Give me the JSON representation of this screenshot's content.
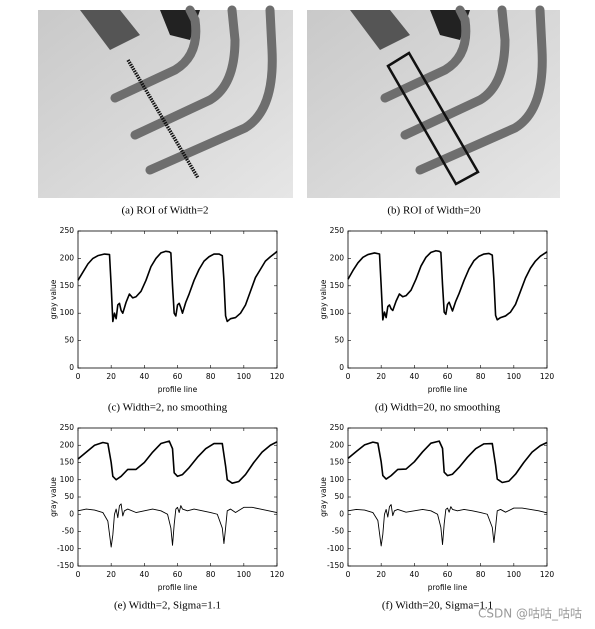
{
  "figures": [
    {
      "caption": "(a) ROI of Width=2"
    },
    {
      "caption": "(b) ROI of Width=20"
    }
  ],
  "chart_data": [
    {
      "type": "line",
      "caption": "(c) Width=2, no smoothing",
      "xlabel": "profile line",
      "ylabel": "gray value",
      "xlim": [
        0,
        120
      ],
      "xticks": [
        0,
        20,
        40,
        60,
        80,
        100,
        120
      ],
      "ylim": [
        0,
        250
      ],
      "yticks": [
        0,
        50,
        100,
        150,
        200,
        250
      ],
      "series": [
        {
          "color": "#000000",
          "x": [
            0,
            3,
            6,
            9,
            12,
            16,
            19,
            20,
            21,
            22,
            23,
            24,
            25,
            26,
            27,
            29,
            31,
            33,
            35,
            38,
            41,
            44,
            47,
            50,
            53,
            55,
            56,
            57,
            58,
            59,
            60,
            61,
            62,
            63,
            65,
            67,
            70,
            73,
            76,
            79,
            82,
            85,
            87,
            88,
            89,
            90,
            92,
            95,
            98,
            101,
            104,
            107,
            110,
            113,
            116,
            119,
            120
          ],
          "values": [
            160,
            175,
            190,
            200,
            205,
            208,
            207,
            150,
            85,
            100,
            90,
            115,
            118,
            105,
            100,
            120,
            135,
            128,
            130,
            140,
            160,
            185,
            200,
            210,
            213,
            212,
            210,
            150,
            100,
            95,
            115,
            118,
            110,
            100,
            120,
            135,
            160,
            180,
            195,
            203,
            208,
            208,
            205,
            160,
            95,
            85,
            90,
            92,
            100,
            115,
            140,
            165,
            180,
            195,
            203,
            210,
            213
          ]
        }
      ]
    },
    {
      "type": "line",
      "caption": "(d) Width=20, no smoothing",
      "xlabel": "profile line",
      "ylabel": "gray value",
      "xlim": [
        0,
        120
      ],
      "xticks": [
        0,
        20,
        40,
        60,
        80,
        100,
        120
      ],
      "ylim": [
        0,
        250
      ],
      "yticks": [
        0,
        50,
        100,
        150,
        200,
        250
      ],
      "series": [
        {
          "color": "#000000",
          "x": [
            0,
            3,
            6,
            9,
            12,
            16,
            19,
            20,
            21,
            22,
            23,
            24,
            25,
            26,
            27,
            29,
            31,
            33,
            35,
            38,
            41,
            44,
            47,
            50,
            53,
            55,
            56,
            57,
            58,
            59,
            60,
            61,
            62,
            63,
            65,
            67,
            70,
            73,
            76,
            79,
            82,
            85,
            87,
            88,
            89,
            90,
            92,
            95,
            98,
            101,
            104,
            107,
            110,
            113,
            116,
            119,
            120
          ],
          "values": [
            162,
            178,
            192,
            202,
            207,
            210,
            208,
            150,
            88,
            102,
            92,
            112,
            115,
            108,
            105,
            122,
            135,
            130,
            132,
            142,
            162,
            186,
            202,
            211,
            214,
            213,
            211,
            152,
            102,
            98,
            116,
            120,
            112,
            104,
            122,
            136,
            160,
            181,
            196,
            204,
            208,
            209,
            206,
            160,
            96,
            88,
            92,
            95,
            102,
            116,
            140,
            164,
            182,
            195,
            204,
            210,
            212
          ]
        }
      ]
    },
    {
      "type": "line",
      "caption": "(e) Width=2, Sigma=1.1",
      "xlabel": "profile line",
      "ylabel": "gray value",
      "xlim": [
        0,
        120
      ],
      "xticks": [
        0,
        20,
        40,
        60,
        80,
        100,
        120
      ],
      "ylim": [
        -150,
        250
      ],
      "yticks": [
        -150,
        -100,
        -50,
        0,
        50,
        100,
        150,
        200,
        250
      ],
      "series": [
        {
          "color": "#000000",
          "x": [
            0,
            5,
            10,
            15,
            18,
            20,
            21,
            23,
            26,
            30,
            35,
            40,
            45,
            50,
            55,
            57,
            58,
            60,
            63,
            67,
            72,
            77,
            82,
            87,
            89,
            90,
            93,
            97,
            101,
            106,
            111,
            116,
            120
          ],
          "values": [
            160,
            180,
            200,
            208,
            205,
            150,
            110,
            100,
            110,
            130,
            130,
            150,
            180,
            205,
            212,
            190,
            120,
            110,
            115,
            135,
            165,
            190,
            205,
            205,
            140,
            100,
            90,
            95,
            115,
            150,
            180,
            200,
            210
          ]
        },
        {
          "color": "#000000",
          "x": [
            0,
            5,
            10,
            15,
            18,
            20,
            21,
            22,
            23,
            24,
            25,
            26,
            27,
            28,
            30,
            35,
            40,
            45,
            50,
            54,
            56,
            57,
            58,
            59,
            60,
            61,
            62,
            63,
            66,
            70,
            75,
            80,
            84,
            87,
            88,
            89,
            90,
            92,
            95,
            100,
            105,
            110,
            115,
            120
          ],
          "values": [
            10,
            15,
            12,
            5,
            -20,
            -95,
            -60,
            0,
            15,
            -10,
            25,
            30,
            -5,
            10,
            15,
            5,
            10,
            15,
            10,
            0,
            -40,
            -90,
            -30,
            15,
            20,
            5,
            25,
            15,
            10,
            15,
            10,
            5,
            0,
            -40,
            -85,
            -40,
            10,
            15,
            5,
            20,
            20,
            15,
            10,
            5
          ]
        }
      ]
    },
    {
      "type": "line",
      "caption": "(f) Width=20, Sigma=1.1",
      "xlabel": "profile line",
      "ylabel": "gray value",
      "xlim": [
        0,
        120
      ],
      "xticks": [
        0,
        20,
        40,
        60,
        80,
        100,
        120
      ],
      "ylim": [
        -150,
        250
      ],
      "yticks": [
        -150,
        -100,
        -50,
        0,
        50,
        100,
        150,
        200,
        250
      ],
      "series": [
        {
          "color": "#000000",
          "x": [
            0,
            5,
            10,
            15,
            18,
            20,
            21,
            23,
            26,
            30,
            35,
            40,
            45,
            50,
            55,
            57,
            58,
            60,
            63,
            67,
            72,
            77,
            82,
            87,
            89,
            90,
            93,
            97,
            101,
            106,
            111,
            116,
            120
          ],
          "values": [
            162,
            182,
            201,
            209,
            206,
            152,
            112,
            102,
            112,
            130,
            131,
            152,
            181,
            206,
            212,
            191,
            122,
            112,
            116,
            136,
            165,
            190,
            204,
            205,
            142,
            102,
            92,
            96,
            116,
            150,
            180,
            199,
            208
          ]
        },
        {
          "color": "#000000",
          "x": [
            0,
            5,
            10,
            15,
            18,
            20,
            21,
            22,
            23,
            24,
            25,
            26,
            27,
            28,
            30,
            35,
            40,
            45,
            50,
            54,
            56,
            57,
            58,
            59,
            60,
            61,
            62,
            63,
            66,
            70,
            75,
            80,
            84,
            87,
            88,
            89,
            90,
            92,
            95,
            100,
            105,
            110,
            115,
            120
          ],
          "values": [
            10,
            14,
            12,
            5,
            -18,
            -92,
            -58,
            0,
            14,
            -8,
            22,
            28,
            -4,
            10,
            14,
            6,
            10,
            14,
            10,
            0,
            -38,
            -88,
            -28,
            14,
            18,
            6,
            22,
            14,
            10,
            14,
            10,
            5,
            0,
            -38,
            -82,
            -38,
            10,
            14,
            6,
            18,
            18,
            14,
            10,
            4
          ]
        }
      ]
    }
  ],
  "watermark": "CSDN @咕咕_咕咕"
}
